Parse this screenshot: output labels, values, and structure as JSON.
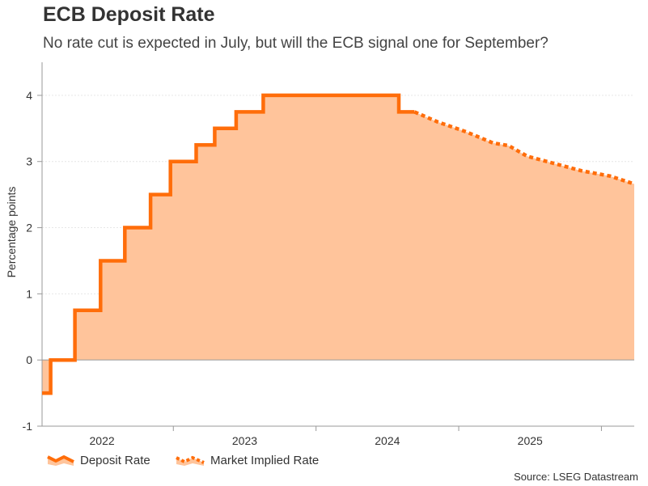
{
  "chart_data": {
    "type": "area",
    "title": "ECB Deposit Rate",
    "subtitle": "No rate cut is expected in July, but will the ECB signal one for September?",
    "ylabel": "Percentage points",
    "xlabel": "",
    "ylim": [
      -1,
      4.5
    ],
    "xlim": [
      2021.58,
      2025.73
    ],
    "yticks": [
      -1,
      0,
      1,
      2,
      3,
      4
    ],
    "xticks": [
      {
        "label": "2022",
        "value": 2022.0
      },
      {
        "label": "2023",
        "value": 2023.0
      },
      {
        "label": "2024",
        "value": 2024.0
      },
      {
        "label": "2025",
        "value": 2025.0
      }
    ],
    "grid": true,
    "series": [
      {
        "name": "Deposit Rate",
        "style": "solid-step",
        "color": "#ff6d0a",
        "points": [
          {
            "x": 2021.58,
            "y": -0.5
          },
          {
            "x": 2021.64,
            "y": 0.0
          },
          {
            "x": 2021.81,
            "y": 0.75
          },
          {
            "x": 2021.99,
            "y": 1.5
          },
          {
            "x": 2022.16,
            "y": 2.0
          },
          {
            "x": 2022.34,
            "y": 2.5
          },
          {
            "x": 2022.48,
            "y": 3.0
          },
          {
            "x": 2022.66,
            "y": 3.25
          },
          {
            "x": 2022.79,
            "y": 3.5
          },
          {
            "x": 2022.94,
            "y": 3.75
          },
          {
            "x": 2023.13,
            "y": 4.0
          },
          {
            "x": 2024.08,
            "y": 3.75
          },
          {
            "x": 2024.19,
            "y": 3.75
          }
        ]
      },
      {
        "name": "Market Implied Rate",
        "style": "dotted",
        "color": "#ff6d0a",
        "points": [
          {
            "x": 2024.19,
            "y": 3.75
          },
          {
            "x": 2024.35,
            "y": 3.6
          },
          {
            "x": 2024.55,
            "y": 3.45
          },
          {
            "x": 2024.74,
            "y": 3.28
          },
          {
            "x": 2024.85,
            "y": 3.24
          },
          {
            "x": 2024.98,
            "y": 3.08
          },
          {
            "x": 2025.17,
            "y": 2.97
          },
          {
            "x": 2025.36,
            "y": 2.86
          },
          {
            "x": 2025.56,
            "y": 2.78
          },
          {
            "x": 2025.73,
            "y": 2.66
          }
        ]
      }
    ],
    "fill_color": "#ffc49b",
    "legend": [
      {
        "label": "Deposit Rate",
        "style": "solid"
      },
      {
        "label": "Market Implied Rate",
        "style": "dotted"
      }
    ],
    "source": "Source: LSEG Datastream"
  }
}
